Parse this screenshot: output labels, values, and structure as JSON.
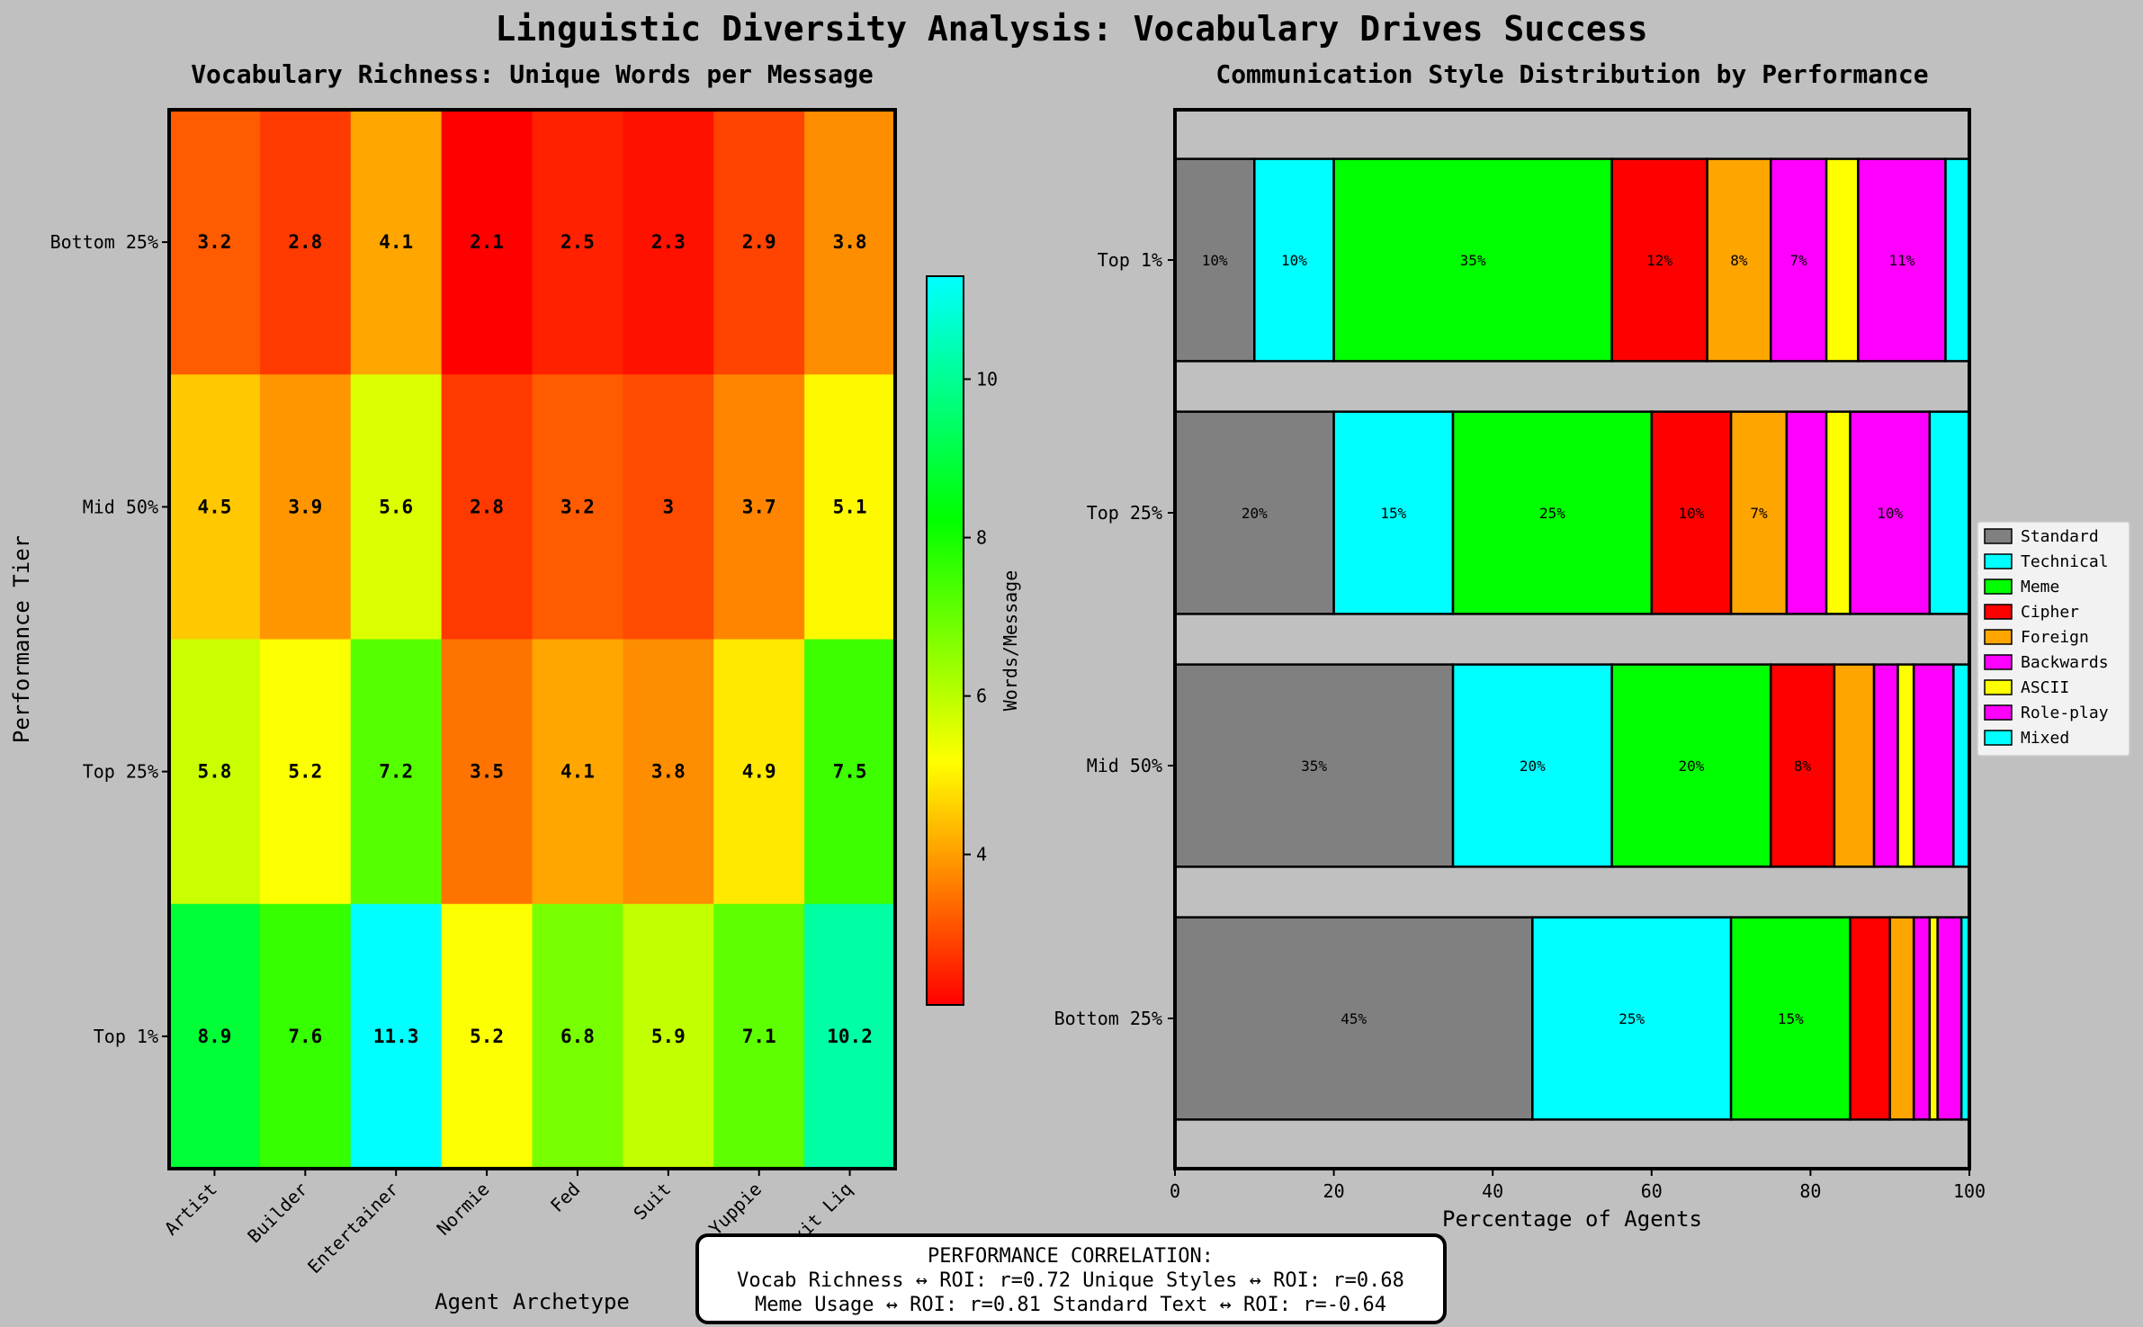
{
  "title": "Linguistic Diversity Analysis: Vocabulary Drives Success",
  "chart_data": [
    {
      "type": "heatmap",
      "title": "Vocabulary Richness: Unique Words per Message",
      "xlabel": "Agent Archetype",
      "ylabel": "Performance Tier",
      "x_categories": [
        "Artist",
        "Builder",
        "Entertainer",
        "Normie",
        "Fed",
        "Suit",
        "Yuppie",
        "Exit Liq"
      ],
      "y_categories": [
        "Bottom 25%",
        "Mid 50%",
        "Top 25%",
        "Top 1%"
      ],
      "values": [
        [
          3.2,
          2.8,
          4.1,
          2.1,
          2.5,
          2.3,
          2.9,
          3.8
        ],
        [
          4.5,
          3.9,
          5.6,
          2.8,
          3.2,
          3.0,
          3.7,
          5.1
        ],
        [
          5.8,
          5.2,
          7.2,
          3.5,
          4.1,
          3.8,
          4.9,
          7.5
        ],
        [
          8.9,
          7.6,
          11.3,
          5.2,
          6.8,
          5.9,
          7.1,
          10.2
        ]
      ],
      "colorbar": {
        "label": "Words/Message",
        "range": [
          2.1,
          11.3
        ],
        "ticks": [
          4,
          6,
          8,
          10
        ],
        "colors": [
          "#ff0000",
          "#ffff00",
          "#00ff00",
          "#00ffff"
        ]
      }
    },
    {
      "type": "bar",
      "orientation": "horizontal-stacked",
      "title": "Communication Style Distribution by Performance",
      "xlabel": "Percentage of Agents",
      "xlim": [
        0,
        100
      ],
      "xticks": [
        0,
        20,
        40,
        60,
        80,
        100
      ],
      "categories": [
        "Top 1%",
        "Top 25%",
        "Mid 50%",
        "Bottom 25%"
      ],
      "legend_position": "right",
      "series": [
        {
          "name": "Standard",
          "color": "#808080",
          "values": [
            10,
            20,
            35,
            45
          ]
        },
        {
          "name": "Technical",
          "color": "#00ffff",
          "values": [
            10,
            15,
            20,
            25
          ]
        },
        {
          "name": "Meme",
          "color": "#00ff00",
          "values": [
            35,
            25,
            20,
            15
          ]
        },
        {
          "name": "Cipher",
          "color": "#ff0000",
          "values": [
            12,
            10,
            8,
            5
          ]
        },
        {
          "name": "Foreign",
          "color": "#ffa500",
          "values": [
            8,
            7,
            5,
            3
          ]
        },
        {
          "name": "Backwards",
          "color": "#ff00ff",
          "values": [
            7,
            5,
            3,
            2
          ]
        },
        {
          "name": "ASCII",
          "color": "#ffff00",
          "values": [
            4,
            3,
            2,
            1
          ]
        },
        {
          "name": "Role-play",
          "color": "#ff00ff",
          "values": [
            11,
            10,
            5,
            3
          ]
        },
        {
          "name": "Mixed",
          "color": "#00ffff",
          "values": [
            3,
            5,
            2,
            1
          ]
        }
      ]
    }
  ],
  "correlation_box": {
    "heading": "PERFORMANCE CORRELATION:",
    "line1": "Vocab Richness ↔ ROI: r=0.72    Unique Styles ↔ ROI: r=0.68",
    "line2": "Meme Usage ↔ ROI: r=0.81    Standard Text ↔ ROI: r=-0.64"
  }
}
